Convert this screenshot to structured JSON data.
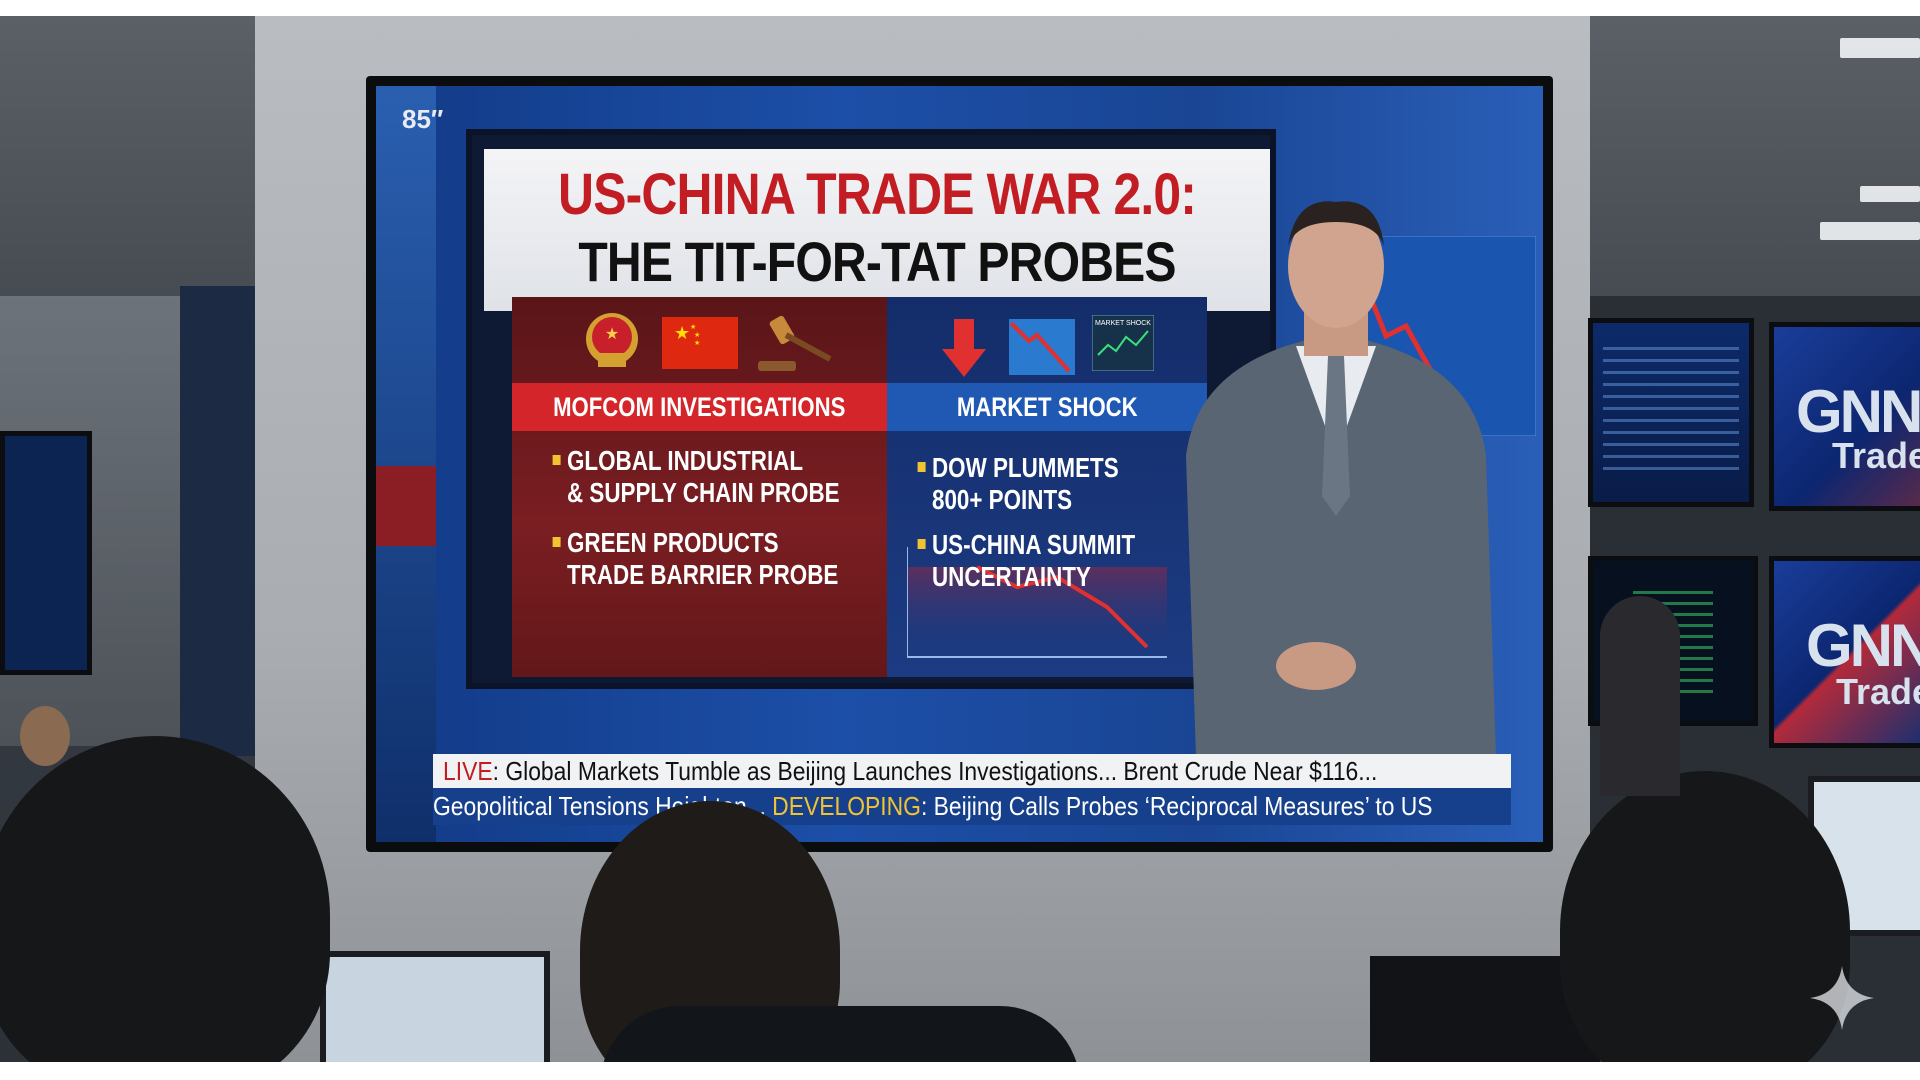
{
  "tv": {
    "size_label": "85″",
    "graphic": {
      "title_line1": "US-CHINA TRADE WAR 2.0:",
      "title_line2": "THE TIT-FOR-TAT PROBES",
      "left": {
        "header": "MOFCOM INVESTIGATIONS",
        "icons": [
          "china-emblem-icon",
          "china-flag-icon",
          "gavel-icon"
        ],
        "bullets": [
          {
            "line1": "GLOBAL INDUSTRIAL",
            "line2": "& SUPPLY CHAIN PROBE"
          },
          {
            "line1": "GREEN PRODUCTS",
            "line2": "TRADE BARRIER PROBE"
          }
        ]
      },
      "right": {
        "header": "MARKET SHOCK",
        "icons": [
          "down-arrow-icon",
          "falling-chart-icon",
          "market-shock-screen-icon"
        ],
        "mini_screen_label": "MARKET SHOCK",
        "bullets": [
          {
            "line1": "DOW PLUMMETS",
            "line2": "800+ POINTS"
          },
          {
            "line1": "US-CHINA SUMMIT",
            "line2": "UNCERTAINTY"
          }
        ]
      }
    },
    "ticker": {
      "line1_tag": "LIVE",
      "line1_text": ": Global Markets Tumble as Beijing Launches Investigations...  Brent Crude Near $116...",
      "line2_pre": "Geopolitical Tensions Heighten...  ",
      "line2_tag": "DEVELOPING",
      "line2_text": ": Beijing Calls Probes ‘Reciprocal Measures’ to US"
    }
  },
  "background_monitors": {
    "brand": "GNN",
    "sub": "Trade"
  },
  "colors": {
    "red": "#c11d22",
    "ticker_blue": "#17408c",
    "developing_yellow": "#f1c232"
  }
}
